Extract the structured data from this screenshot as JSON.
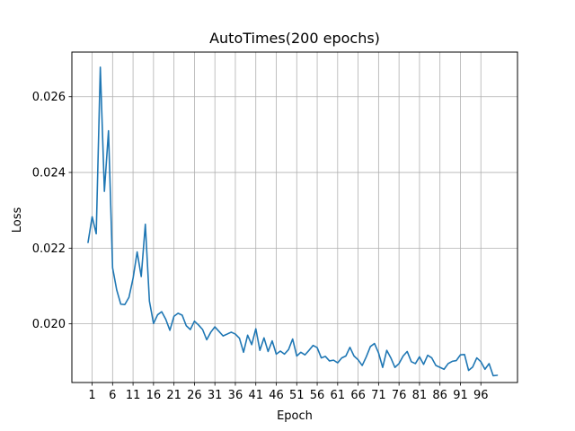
{
  "chart_data": {
    "type": "line",
    "title": "AutoTimes(200 epochs)",
    "xlabel": "Epoch",
    "ylabel": "Loss",
    "xlim": [
      -3.95,
      104.95
    ],
    "ylim": [
      0.01845,
      0.02718
    ],
    "xticks": [
      1,
      6,
      11,
      16,
      21,
      26,
      31,
      36,
      41,
      46,
      51,
      56,
      61,
      66,
      71,
      76,
      81,
      86,
      91,
      96
    ],
    "xtick_labels": [
      "1",
      "6",
      "11",
      "16",
      "21",
      "26",
      "31",
      "36",
      "41",
      "46",
      "51",
      "56",
      "61",
      "66",
      "71",
      "76",
      "81",
      "86",
      "91",
      "96"
    ],
    "yticks": [
      0.02,
      0.022,
      0.024,
      0.026
    ],
    "ytick_labels": [
      "0.020",
      "0.022",
      "0.024",
      "0.026"
    ],
    "grid": true,
    "series": [
      {
        "color": "#1f77b4",
        "x": [
          0,
          1,
          2,
          3,
          4,
          5,
          6,
          7,
          8,
          9,
          10,
          11,
          12,
          13,
          14,
          15,
          16,
          17,
          18,
          19,
          20,
          21,
          22,
          23,
          24,
          25,
          26,
          27,
          28,
          29,
          30,
          31,
          32,
          33,
          34,
          35,
          36,
          37,
          38,
          39,
          40,
          41,
          42,
          43,
          44,
          45,
          46,
          47,
          48,
          49,
          50,
          51,
          52,
          53,
          54,
          55,
          56,
          57,
          58,
          59,
          60,
          61,
          62,
          63,
          64,
          65,
          66,
          67,
          68,
          69,
          70,
          71,
          72,
          73,
          74,
          75,
          76,
          77,
          78,
          79,
          80,
          81,
          82,
          83,
          84,
          85,
          86,
          87,
          88,
          89,
          90,
          91,
          92,
          93,
          94,
          95,
          96,
          97,
          98,
          99,
          100
        ],
        "values": [
          0.02215,
          0.02283,
          0.02238,
          0.02678,
          0.0235,
          0.0251,
          0.02148,
          0.0209,
          0.02052,
          0.02051,
          0.0207,
          0.0212,
          0.0219,
          0.02125,
          0.02263,
          0.0206,
          0.02001,
          0.02024,
          0.02032,
          0.02012,
          0.01983,
          0.0202,
          0.02028,
          0.02023,
          0.01995,
          0.01985,
          0.02007,
          0.01997,
          0.01985,
          0.01958,
          0.01978,
          0.01992,
          0.0198,
          0.01968,
          0.01973,
          0.01978,
          0.01973,
          0.01962,
          0.01925,
          0.0197,
          0.01945,
          0.01987,
          0.0193,
          0.01963,
          0.01927,
          0.01955,
          0.0192,
          0.01928,
          0.0192,
          0.01932,
          0.0196,
          0.01915,
          0.01925,
          0.01918,
          0.0193,
          0.01943,
          0.01937,
          0.0191,
          0.01914,
          0.01902,
          0.01904,
          0.01897,
          0.0191,
          0.01915,
          0.01938,
          0.01915,
          0.01905,
          0.0189,
          0.01913,
          0.0194,
          0.01948,
          0.01923,
          0.01885,
          0.0193,
          0.0191,
          0.01885,
          0.01895,
          0.01915,
          0.01927,
          0.019,
          0.01895,
          0.01913,
          0.01893,
          0.01917,
          0.0191,
          0.0189,
          0.01885,
          0.0188,
          0.01895,
          0.01901,
          0.01903,
          0.01918,
          0.01919,
          0.01877,
          0.01886,
          0.0191,
          0.019,
          0.0188,
          0.01895,
          0.01863,
          0.01864
        ]
      }
    ]
  }
}
